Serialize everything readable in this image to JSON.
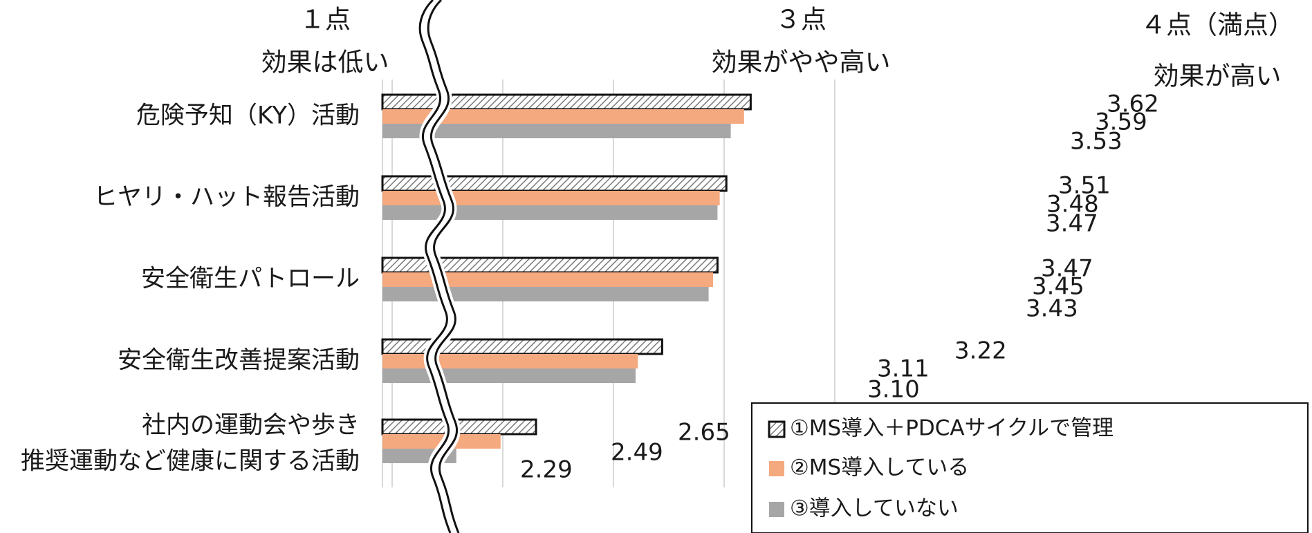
{
  "chart_data": {
    "type": "bar",
    "orientation": "horizontal",
    "title": "",
    "xlabel": "",
    "ylabel": "",
    "xlim": [
      1,
      4
    ],
    "axis_break": true,
    "grid": true,
    "legend_position": "bottom-right",
    "scale_labels": [
      {
        "value": 1,
        "point": "１点",
        "desc": "効果は低い"
      },
      {
        "value": 3,
        "point": "３点",
        "desc": "効果がやや高い"
      },
      {
        "value": 4,
        "point": "４点（満点）",
        "desc": "効果が高い"
      }
    ],
    "categories": [
      [
        "危険予知（KY）活動"
      ],
      [
        "ヒヤリ・ハット報告活動"
      ],
      [
        "安全衛生パトロール"
      ],
      [
        "安全衛生改善提案活動"
      ],
      [
        "社内の運動会や歩き",
        "推奨運動など健康に関する活動"
      ]
    ],
    "series": [
      {
        "name": "①MS導入＋PDCAサイクルで管理",
        "values": [
          3.62,
          3.51,
          3.47,
          3.22,
          2.65
        ],
        "labels": [
          "3.62",
          "3.51",
          "3.47",
          "3.22",
          "2.65"
        ],
        "color": "#d4d4d4",
        "pattern": "hatch"
      },
      {
        "name": "②MS導入している",
        "values": [
          3.59,
          3.48,
          3.45,
          3.11,
          2.49
        ],
        "labels": [
          "3.59",
          "3.48",
          "3.45",
          "3.11",
          "2.49"
        ],
        "color": "#f4a97f"
      },
      {
        "name": "③導入していない",
        "values": [
          3.53,
          3.47,
          3.43,
          3.1,
          2.29
        ],
        "labels": [
          "3.53",
          "3.47",
          "3.43",
          "3.10",
          "2.29"
        ],
        "color": "#a6a6a6"
      }
    ]
  }
}
